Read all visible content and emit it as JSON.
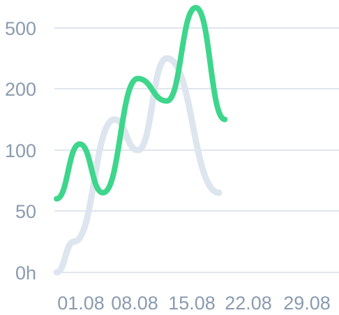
{
  "chart_data": {
    "type": "line",
    "title": "",
    "xlabel": "",
    "ylabel": "",
    "y_scale": "ordinal-levels",
    "y_ticks": [
      "0h",
      "50",
      "100",
      "200",
      "500"
    ],
    "x_tick_labels": [
      "01.08",
      "08.08",
      "15.08",
      "22.08",
      "29.08"
    ],
    "grid": true,
    "legend": "none",
    "series": [
      {
        "color": "#dde5ee",
        "points": [
          [
            "01.08",
            0
          ],
          [
            "04.08",
            25
          ],
          [
            "11.08",
            150
          ],
          [
            "15.08",
            100
          ],
          [
            "20.08",
            350
          ],
          [
            "29.08",
            65
          ]
        ]
      },
      {
        "color": "#3dd68c",
        "points": [
          [
            "01.08",
            60
          ],
          [
            "05.08",
            110
          ],
          [
            "09.08",
            65
          ],
          [
            "15.08",
            250
          ],
          [
            "20.08",
            180
          ],
          [
            "25.08",
            600
          ],
          [
            "30.08",
            150
          ]
        ]
      }
    ]
  }
}
